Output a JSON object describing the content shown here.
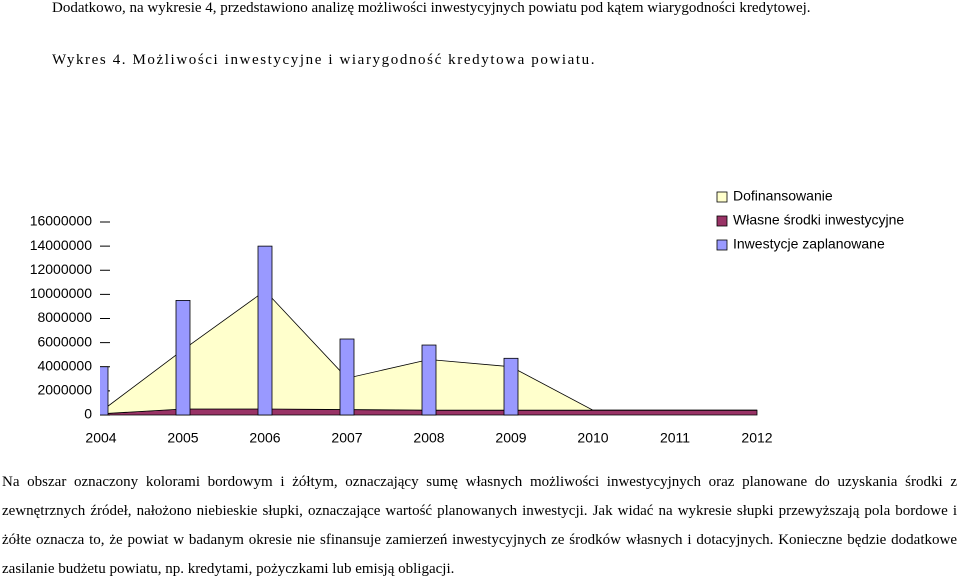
{
  "paragraph_1": "Dodatkowo, na wykresie 4, przedstawiono analizę możliwości inwestycyjnych powiatu pod kątem wiarygodności kredytowej.",
  "caption": "Wykres 4. Możliwości inwestycyjne i wiarygodność kredytowa powiatu.",
  "chart_data": {
    "type": "combo",
    "categories": [
      "2004",
      "2005",
      "2006",
      "2007",
      "2008",
      "2009",
      "2010",
      "2011",
      "2012"
    ],
    "series": [
      {
        "name": "Dofinansowanie",
        "type": "area",
        "color": "#ffffcc",
        "values": [
          200000,
          4900000,
          9800000,
          2600000,
          4200000,
          3600000,
          0,
          0,
          0
        ]
      },
      {
        "name": "Własne środki inwestycyjne",
        "type": "area",
        "color": "#993366",
        "values": [
          100000,
          500000,
          500000,
          450000,
          400000,
          400000,
          400000,
          400000,
          400000
        ]
      },
      {
        "name": "Inwestycje zaplanowane",
        "type": "bar",
        "color": "#9999ff",
        "values": [
          4000000,
          9500000,
          14000000,
          6300000,
          5800000,
          4700000,
          null,
          null,
          null
        ]
      }
    ],
    "ylim": [
      0,
      16000000
    ],
    "yticks": [
      0,
      2000000,
      4000000,
      6000000,
      8000000,
      10000000,
      12000000,
      14000000,
      16000000
    ],
    "legend": "top-right"
  },
  "paragraph_2": "Na obszar oznaczony kolorami bordowym i żółtym, oznaczający sumę własnych możliwości inwestycyjnych oraz planowane do uzyskania środki z zewnętrznych źródeł, nałożono niebieskie słupki, oznaczające wartość planowanych inwestycji. Jak widać na wykresie słupki przewyższają pola bordowe i żółte oznacza to, że powiat w badanym okresie nie sfinansuje zamierzeń inwestycyjnych ze środków własnych i dotacyjnych. Konieczne będzie dodatkowe zasilanie budżetu powiatu, np. kredytami, pożyczkami lub emisją obligacji."
}
